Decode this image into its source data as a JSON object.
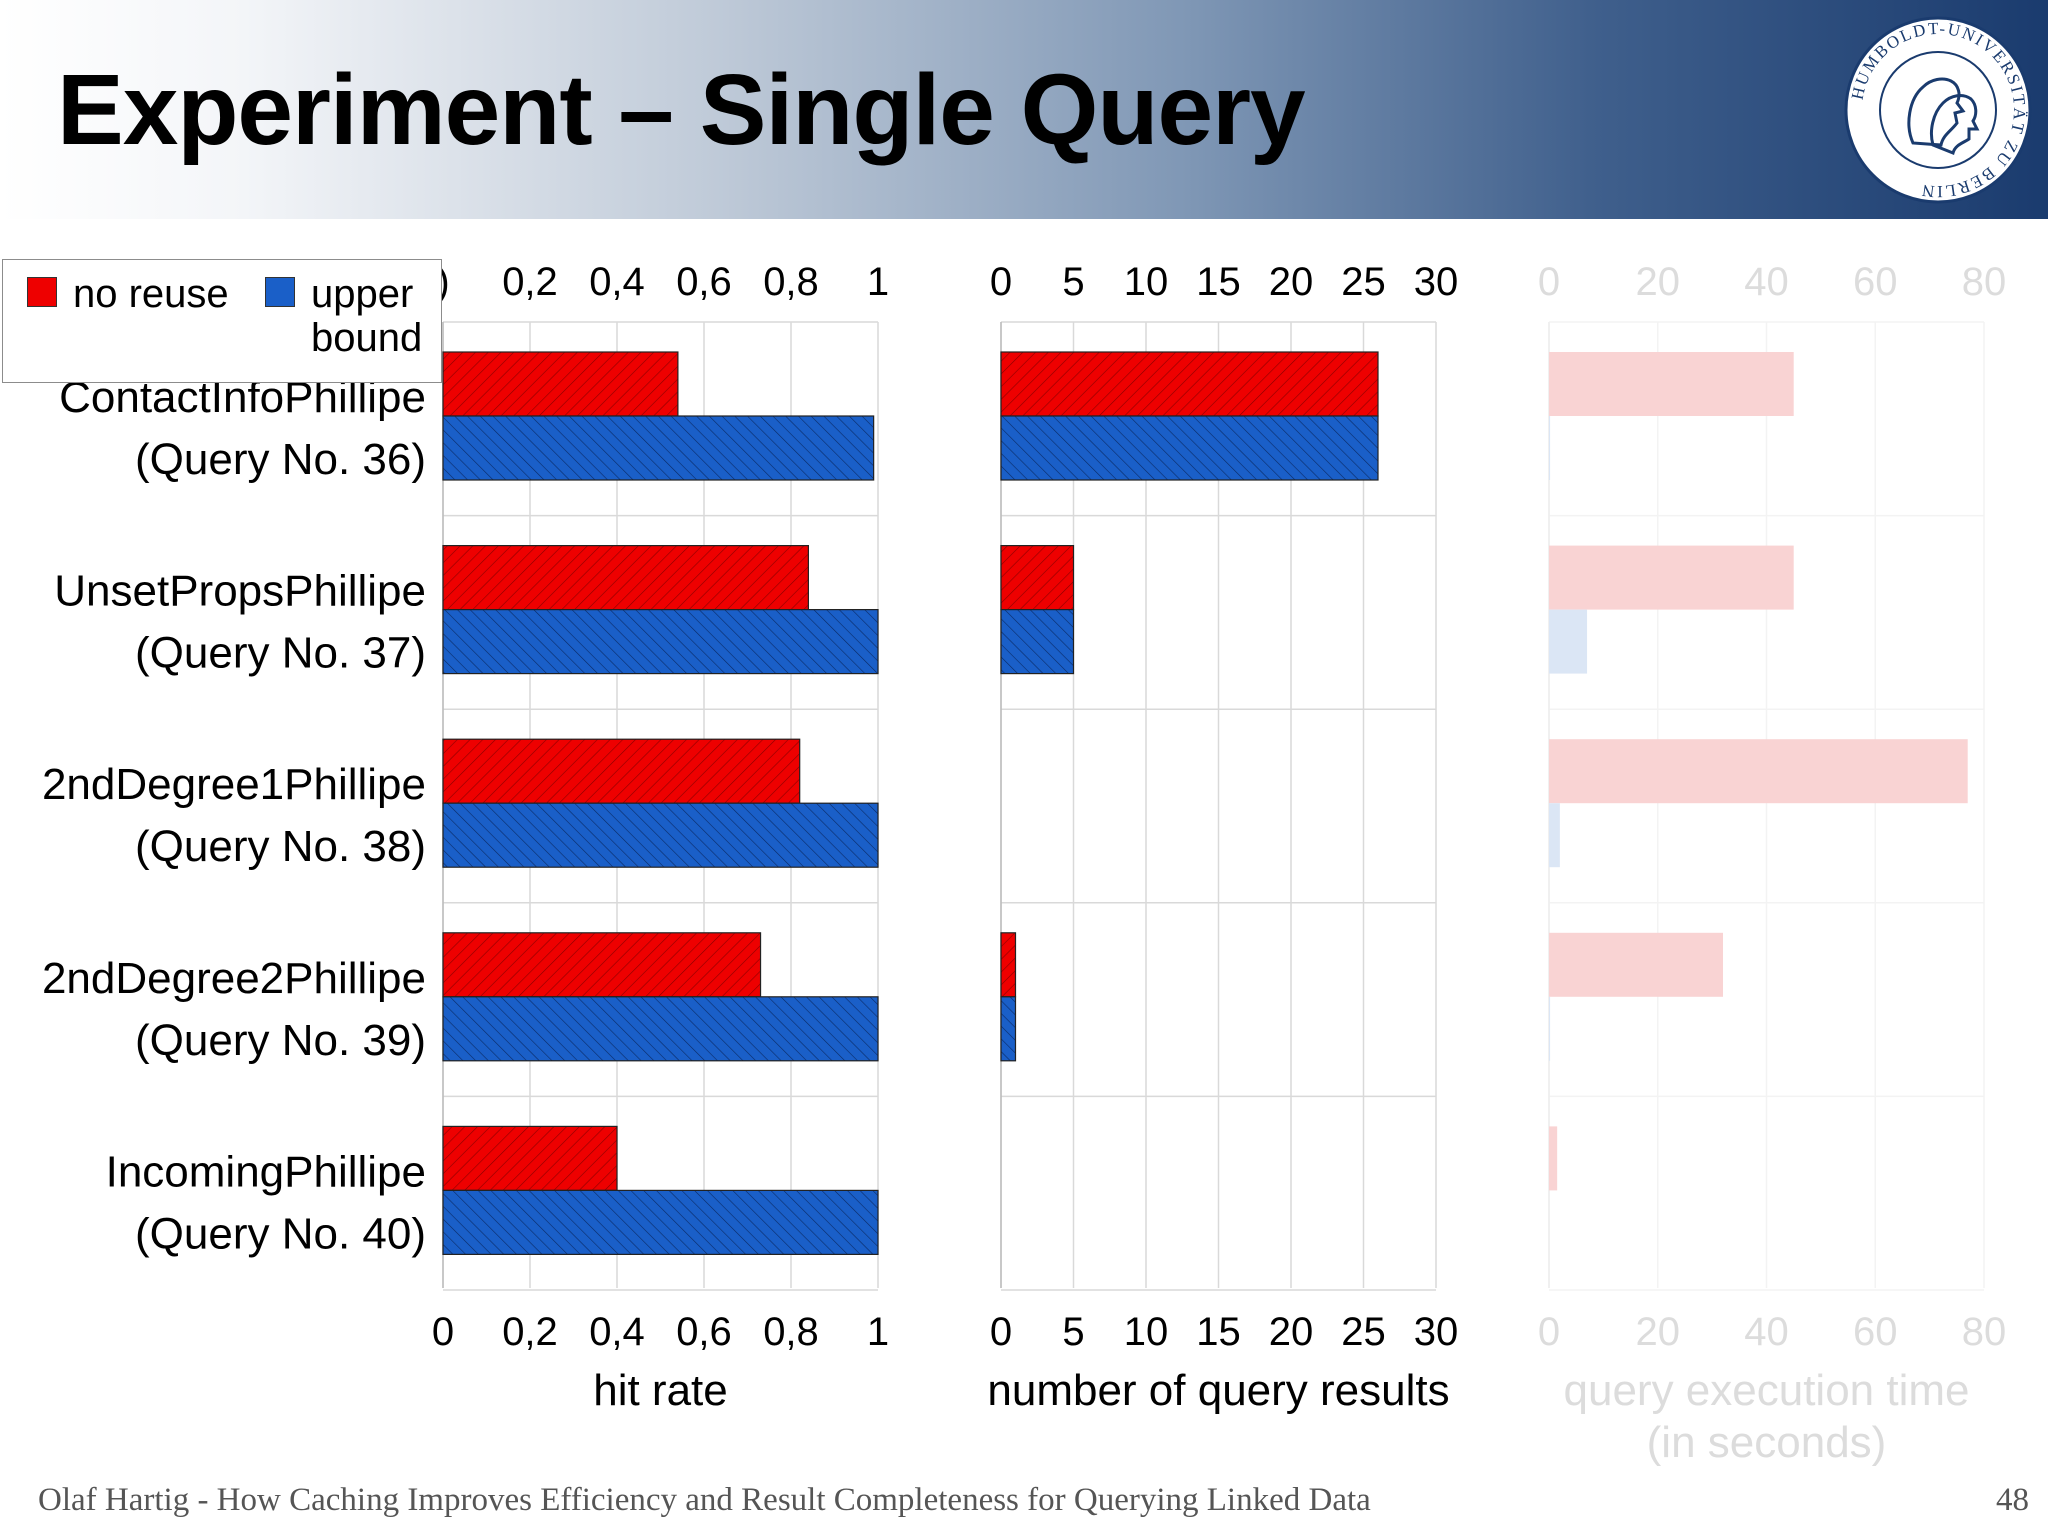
{
  "slide": {
    "title": "Experiment – Single Query",
    "footer": "Olaf Hartig - How Caching Improves Efficiency and Result Completeness for Querying Linked Data",
    "page_number": "48",
    "logo_text": "HUMBOLDT-UNIVERSITÄT ZU BERLIN"
  },
  "legend": {
    "items": [
      {
        "label": "no reuse",
        "color": "#ee0000"
      },
      {
        "label": "upper\nbound",
        "color": "#1a5fc8"
      }
    ]
  },
  "colors": {
    "no_reuse": "#ee0000",
    "upper_bound": "#1a5fc8",
    "faded_red": "#f9d3d3",
    "faded_blue": "#dbe6f5"
  },
  "chart_data": [
    {
      "type": "bar",
      "orientation": "horizontal",
      "categories": [
        "ContactInfoPhillipe\n(Query No. 36)",
        "UnsetPropsPhillipe\n(Query No. 37)",
        "2ndDegree1Phillipe\n(Query No. 38)",
        "2ndDegree2Phillipe\n(Query No. 39)",
        "IncomingPhillipe\n(Query No. 40)"
      ],
      "series": [
        {
          "name": "no reuse",
          "values": [
            0.54,
            0.84,
            0.82,
            0.73,
            0.4
          ]
        },
        {
          "name": "upper bound",
          "values": [
            0.99,
            1.0,
            1.0,
            1.0,
            1.0
          ]
        }
      ],
      "xlabel": "hit rate",
      "xlim": [
        0,
        1
      ],
      "ticks": [
        "0",
        "0,2",
        "0,4",
        "0,6",
        "0,8",
        "1"
      ],
      "top_ticks": [
        ")",
        "0,2",
        "0,4",
        "0,6",
        "0,8",
        "1"
      ],
      "grid": true
    },
    {
      "type": "bar",
      "orientation": "horizontal",
      "categories": [
        "ContactInfoPhillipe\n(Query No. 36)",
        "UnsetPropsPhillipe\n(Query No. 37)",
        "2ndDegree1Phillipe\n(Query No. 38)",
        "2ndDegree2Phillipe\n(Query No. 39)",
        "IncomingPhillipe\n(Query No. 40)"
      ],
      "series": [
        {
          "name": "no reuse",
          "values": [
            26,
            5,
            0,
            1,
            0
          ]
        },
        {
          "name": "upper bound",
          "values": [
            26,
            5,
            0,
            1,
            0
          ]
        }
      ],
      "xlabel": "number of query results",
      "xlim": [
        0,
        30
      ],
      "ticks": [
        "0",
        "5",
        "10",
        "15",
        "20",
        "25",
        "30"
      ],
      "top_ticks": [
        "0",
        "5",
        "10",
        "15",
        "20",
        "25",
        "30"
      ],
      "grid": true
    },
    {
      "type": "bar",
      "orientation": "horizontal",
      "faded": true,
      "categories": [
        "ContactInfoPhillipe\n(Query No. 36)",
        "UnsetPropsPhillipe\n(Query No. 37)",
        "2ndDegree1Phillipe\n(Query No. 38)",
        "2ndDegree2Phillipe\n(Query No. 39)",
        "IncomingPhillipe\n(Query No. 40)"
      ],
      "series": [
        {
          "name": "no reuse",
          "values": [
            45,
            45,
            77,
            32,
            1.5
          ]
        },
        {
          "name": "upper bound",
          "values": [
            0.2,
            7,
            2,
            0.2,
            0
          ]
        }
      ],
      "xlabel": "query execution time\n(in seconds)",
      "xlim": [
        0,
        80
      ],
      "ticks": [
        "0",
        "20",
        "40",
        "60",
        "80"
      ],
      "top_ticks": [
        "0",
        "20",
        "40",
        "60",
        "80"
      ],
      "grid": true
    }
  ]
}
